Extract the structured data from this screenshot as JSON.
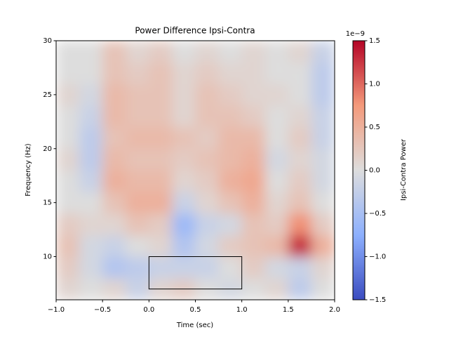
{
  "chart_data": {
    "type": "heatmap",
    "title": "Power Difference Ipsi-Contra",
    "x_label": "Time (sec)",
    "y_label": "Frequency (Hz)",
    "x_edges": [
      -1,
      -0.75,
      -0.5,
      -0.25,
      0,
      0.25,
      0.5,
      0.75,
      1,
      1.25,
      1.5,
      1.75,
      2
    ],
    "y_edges": [
      6,
      8,
      10,
      12,
      14,
      16,
      18,
      20,
      22,
      24,
      26,
      28,
      30
    ],
    "values": [
      [
        0.1,
        0.0,
        0.1,
        -0.2,
        0.1,
        0.2,
        0.0,
        -0.1,
        0.0,
        0.1,
        -0.3,
        0.0
      ],
      [
        0.2,
        -0.1,
        -0.4,
        -0.3,
        -0.2,
        -0.2,
        -0.2,
        0.0,
        0.2,
        -0.1,
        -0.2,
        0.1
      ],
      [
        0.3,
        -0.1,
        -0.2,
        0.0,
        0.1,
        -0.4,
        -0.1,
        0.2,
        0.3,
        0.4,
        1.3,
        0.5
      ],
      [
        0.2,
        0.1,
        0.1,
        0.3,
        0.2,
        -0.6,
        -0.2,
        -0.1,
        0.3,
        0.2,
        0.8,
        0.2
      ],
      [
        0.0,
        0.0,
        0.3,
        0.5,
        0.5,
        -0.2,
        0.1,
        0.3,
        0.5,
        0.1,
        0.3,
        0.0
      ],
      [
        0.0,
        -0.2,
        0.5,
        0.4,
        0.4,
        0.1,
        0.2,
        0.5,
        0.6,
        0.0,
        0.2,
        -0.1
      ],
      [
        0.1,
        -0.3,
        0.4,
        0.3,
        0.3,
        0.2,
        0.3,
        0.4,
        0.5,
        -0.1,
        0.1,
        -0.1
      ],
      [
        0.0,
        -0.3,
        0.3,
        0.4,
        0.4,
        0.3,
        0.2,
        0.4,
        0.4,
        0.0,
        0.2,
        -0.2
      ],
      [
        0.0,
        -0.2,
        0.4,
        0.3,
        0.3,
        0.1,
        0.3,
        0.3,
        0.2,
        0.0,
        0.1,
        -0.2
      ],
      [
        0.1,
        -0.1,
        0.4,
        0.3,
        0.3,
        0.1,
        0.3,
        0.2,
        0.1,
        0.1,
        0.0,
        -0.3
      ],
      [
        0.0,
        0.0,
        0.3,
        0.2,
        0.3,
        0.1,
        0.2,
        0.1,
        0.1,
        0.0,
        0.0,
        -0.3
      ],
      [
        0.0,
        0.0,
        0.3,
        0.1,
        0.2,
        0.0,
        0.1,
        0.0,
        0.1,
        0.0,
        0.1,
        -0.2
      ]
    ],
    "xlim": [
      -1,
      2
    ],
    "ylim": [
      6,
      30
    ],
    "xticks": [
      {
        "value": -1,
        "label": "−1.0"
      },
      {
        "value": -0.5,
        "label": "−0.5"
      },
      {
        "value": 0,
        "label": "0.0"
      },
      0.5,
      {
        "value": 1,
        "label": "1.0"
      },
      1.5,
      {
        "value": 2,
        "label": "2.0"
      }
    ],
    "yticks": [
      10,
      15,
      20,
      25,
      30
    ],
    "box": {
      "x": [
        0,
        1
      ],
      "y": [
        7,
        10
      ],
      "color": "#000000"
    },
    "colormap": "coolwarm",
    "colorbar": {
      "label": "Ipsi-Contra Power",
      "offset_label": "1e−9",
      "clim": [
        -1.5,
        1.5
      ],
      "ticks": [
        {
          "value": -1.5,
          "label": "−1.5"
        },
        {
          "value": -1,
          "label": "−1.0"
        },
        {
          "value": -0.5,
          "label": "−0.5"
        },
        {
          "value": 0,
          "label": "0.0"
        },
        0.5,
        {
          "value": 1,
          "label": "1.0"
        },
        1.5
      ]
    }
  }
}
